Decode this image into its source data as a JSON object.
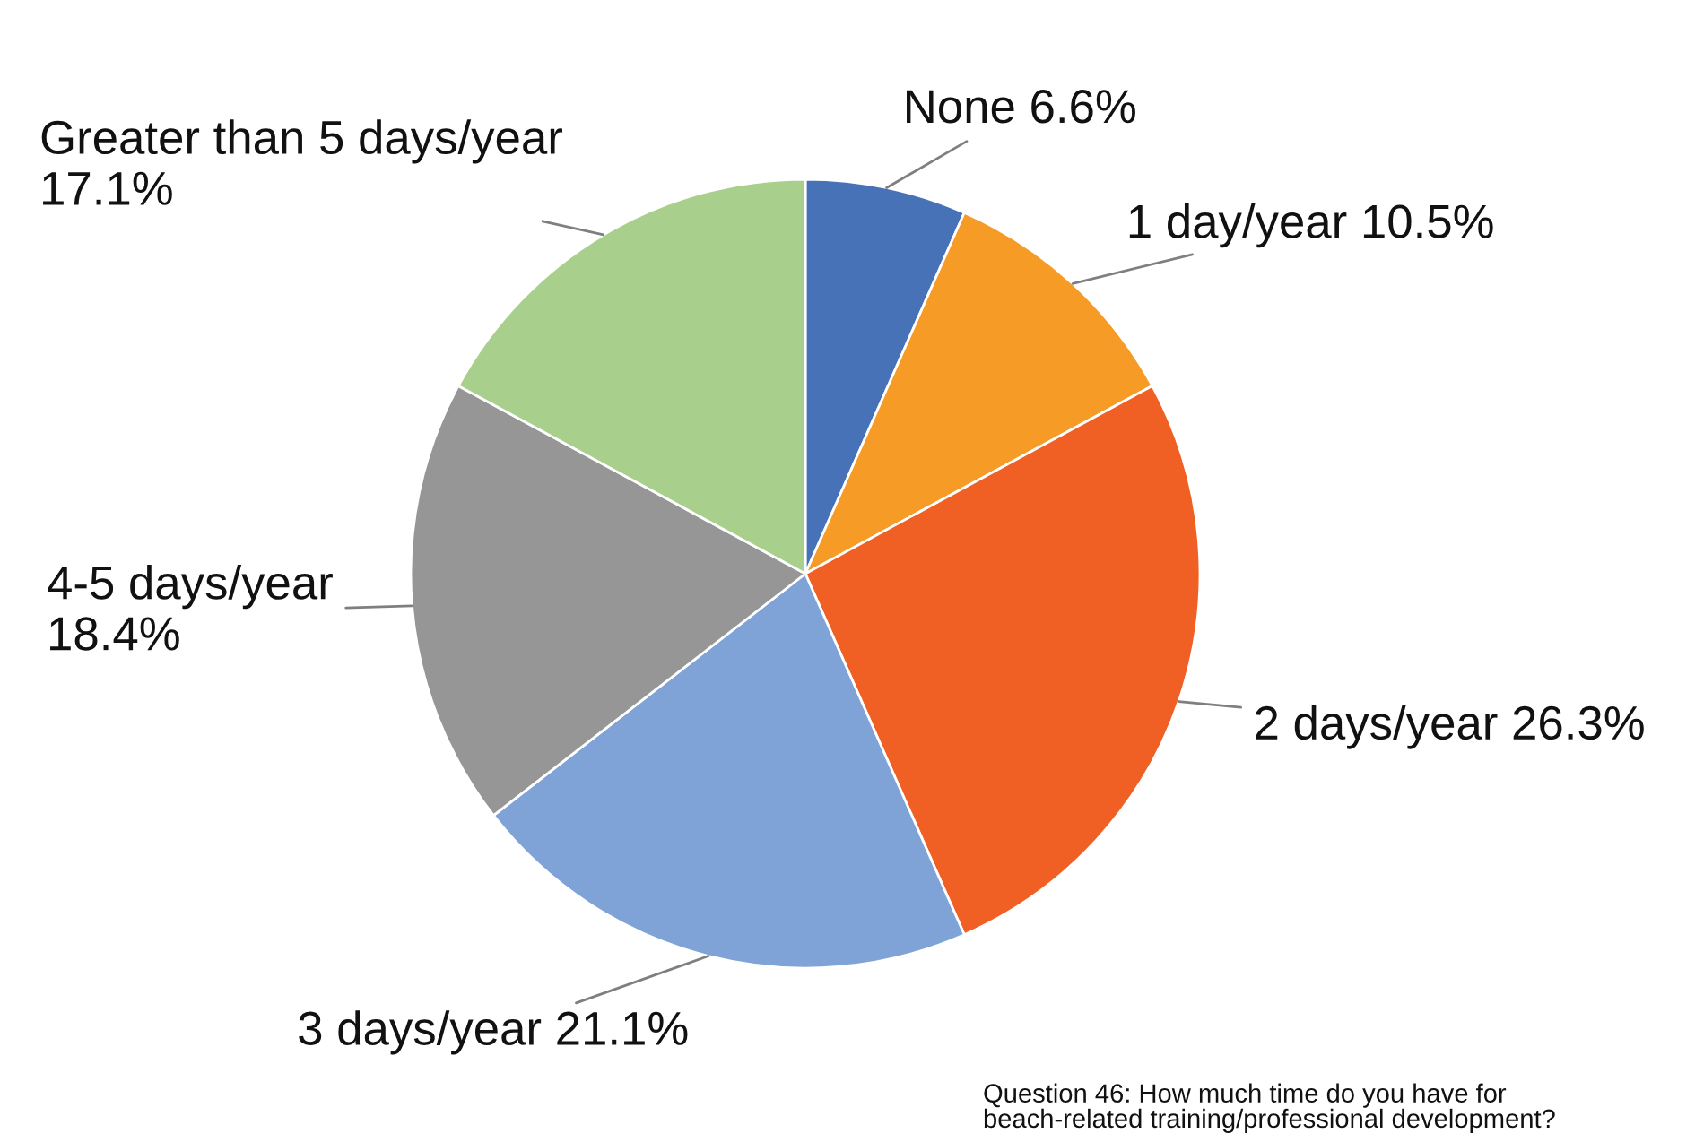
{
  "chart_data": {
    "type": "pie",
    "categories": [
      "None",
      "1 day/year",
      "2 days/year",
      "3 days/year",
      "4-5 days/year",
      "Greater than 5 days/year"
    ],
    "values": [
      6.6,
      10.5,
      26.3,
      21.1,
      18.4,
      17.1
    ],
    "colors": [
      "#4872b8",
      "#f59b26",
      "#f05f24",
      "#7fa3d6",
      "#969696",
      "#a9cf8c"
    ],
    "value_labels": [
      "6.6%",
      "10.5%",
      "26.3%",
      "21.1%",
      "18.4%",
      "17.1%"
    ],
    "annotations": [
      "Question 46: How much time do you have for\nbeach-related training/professional development?"
    ]
  }
}
